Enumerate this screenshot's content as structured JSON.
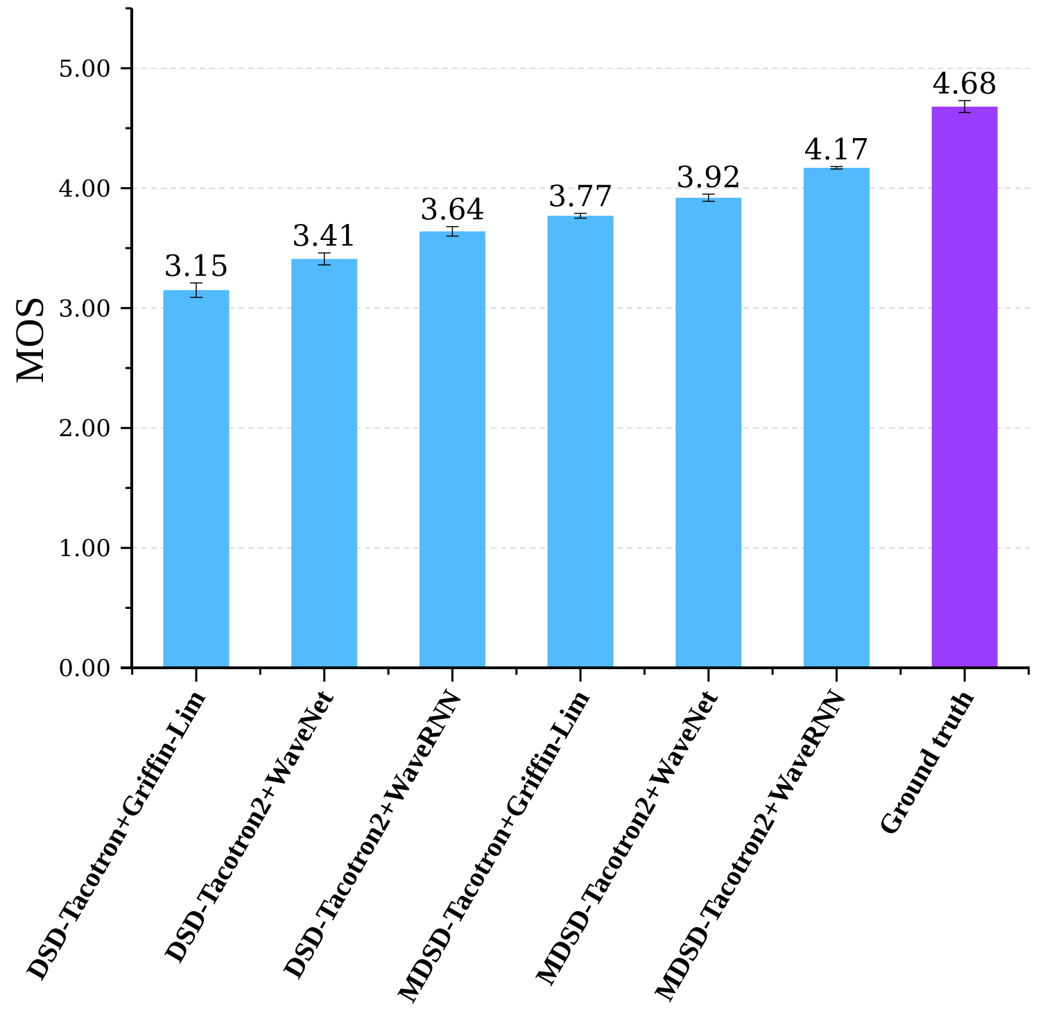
{
  "chart_data": {
    "type": "bar",
    "title": "",
    "xlabel": "",
    "ylabel": "MOS",
    "ylim": [
      0,
      5.5
    ],
    "yticks": [
      "0.00",
      "1.00",
      "2.00",
      "3.00",
      "4.00",
      "5.00"
    ],
    "grid": "horizontal dashed",
    "categories": [
      "DSD-Tacotron+Griffin-Lim",
      "DSD-Tacotron2+WaveNet",
      "DSD-Tacotron2+WaveRNN",
      "MDSD-Tacotron+Griffin-Lim",
      "MDSD-Tacotron2+WaveNet",
      "MDSD-Tacotron2+WaveRNN",
      "Ground truth"
    ],
    "values": [
      3.15,
      3.41,
      3.64,
      3.77,
      3.92,
      4.17,
      4.68
    ],
    "value_labels": [
      "3.15",
      "3.41",
      "3.64",
      "3.77",
      "3.92",
      "4.17",
      "4.68"
    ],
    "error": [
      0.06,
      0.05,
      0.04,
      0.02,
      0.03,
      0.01,
      0.05
    ],
    "colors": [
      "#52baff",
      "#52baff",
      "#52baff",
      "#52baff",
      "#52baff",
      "#52baff",
      "#9b3dff"
    ]
  }
}
